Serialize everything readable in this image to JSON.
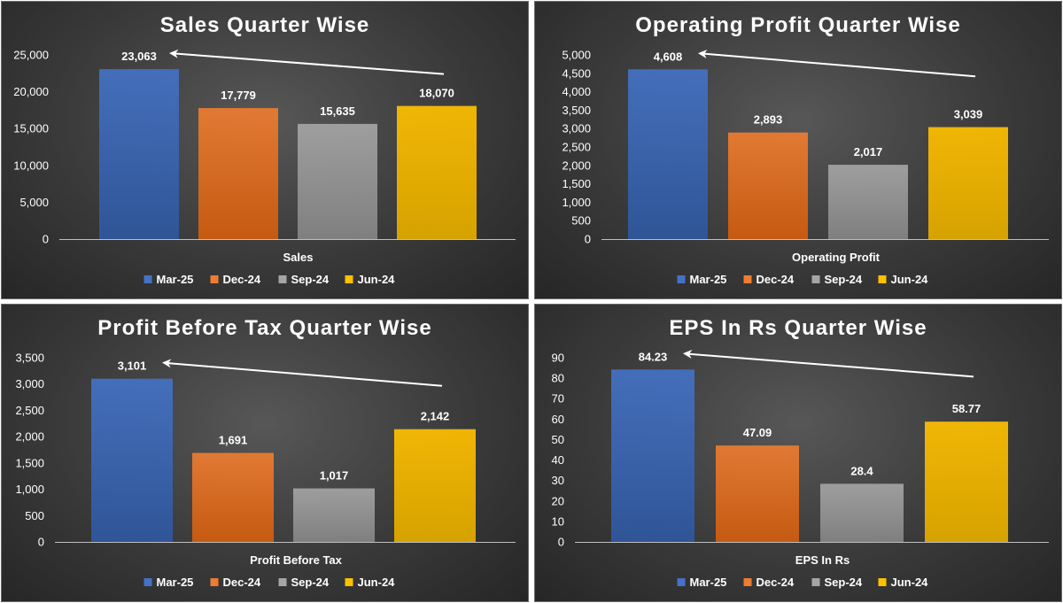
{
  "legend": [
    "Mar-25",
    "Dec-24",
    "Sep-24",
    "Jun-24"
  ],
  "colors": {
    "series": [
      "#4472c4",
      "#ed7d31",
      "#a5a5a5",
      "#ffc000"
    ],
    "series_dark": [
      "#2f5597",
      "#c55a11",
      "#7f7f7f",
      "#d6a200"
    ],
    "axis": "#bfbfbf",
    "text": "#ffffff"
  },
  "chart_data": [
    {
      "type": "bar",
      "title": "Sales Quarter Wise",
      "xlabel": "Sales",
      "categories": [
        "Mar-25",
        "Dec-24",
        "Sep-24",
        "Jun-24"
      ],
      "values": [
        23063,
        17779,
        15635,
        18070
      ],
      "value_labels": [
        "23,063",
        "17,779",
        "15,635",
        "18,070"
      ],
      "ylim": [
        0,
        25000
      ],
      "yticks": [
        0,
        5000,
        10000,
        15000,
        20000,
        25000
      ],
      "ytick_labels": [
        "0",
        "5,000",
        "10,000",
        "15,000",
        "20,000",
        "25,000"
      ],
      "annotation": "arrow from Jun-24 up to Mar-25",
      "grid": false,
      "legend_position": "bottom"
    },
    {
      "type": "bar",
      "title": "Operating Profit Quarter Wise",
      "xlabel": "Operating Profit",
      "categories": [
        "Mar-25",
        "Dec-24",
        "Sep-24",
        "Jun-24"
      ],
      "values": [
        4608,
        2893,
        2017,
        3039
      ],
      "value_labels": [
        "4,608",
        "2,893",
        "2,017",
        "3,039"
      ],
      "ylim": [
        0,
        5000
      ],
      "yticks": [
        0,
        500,
        1000,
        1500,
        2000,
        2500,
        3000,
        3500,
        4000,
        4500,
        5000
      ],
      "ytick_labels": [
        "0",
        "500",
        "1,000",
        "1,500",
        "2,000",
        "2,500",
        "3,000",
        "3,500",
        "4,000",
        "4,500",
        "5,000"
      ],
      "annotation": "arrow from Jun-24 up to Mar-25",
      "grid": false,
      "legend_position": "bottom"
    },
    {
      "type": "bar",
      "title": "Profit Before Tax Quarter Wise",
      "xlabel": "Profit Before Tax",
      "categories": [
        "Mar-25",
        "Dec-24",
        "Sep-24",
        "Jun-24"
      ],
      "values": [
        3101,
        1691,
        1017,
        2142
      ],
      "value_labels": [
        "3,101",
        "1,691",
        "1,017",
        "2,142"
      ],
      "ylim": [
        0,
        3500
      ],
      "yticks": [
        0,
        500,
        1000,
        1500,
        2000,
        2500,
        3000,
        3500
      ],
      "ytick_labels": [
        "0",
        "500",
        "1,000",
        "1,500",
        "2,000",
        "2,500",
        "3,000",
        "3,500"
      ],
      "annotation": "arrow from Jun-24 up to Mar-25",
      "grid": false,
      "legend_position": "bottom"
    },
    {
      "type": "bar",
      "title": "EPS In Rs Quarter Wise",
      "xlabel": "EPS In Rs",
      "categories": [
        "Mar-25",
        "Dec-24",
        "Sep-24",
        "Jun-24"
      ],
      "values": [
        84.23,
        47.09,
        28.4,
        58.77
      ],
      "value_labels": [
        "84.23",
        "47.09",
        "28.4",
        "58.77"
      ],
      "ylim": [
        0,
        90
      ],
      "yticks": [
        0,
        10,
        20,
        30,
        40,
        50,
        60,
        70,
        80,
        90
      ],
      "ytick_labels": [
        "0",
        "10",
        "20",
        "30",
        "40",
        "50",
        "60",
        "70",
        "80",
        "90"
      ],
      "annotation": "arrow from Jun-24 up to Mar-25",
      "grid": false,
      "legend_position": "bottom"
    }
  ]
}
